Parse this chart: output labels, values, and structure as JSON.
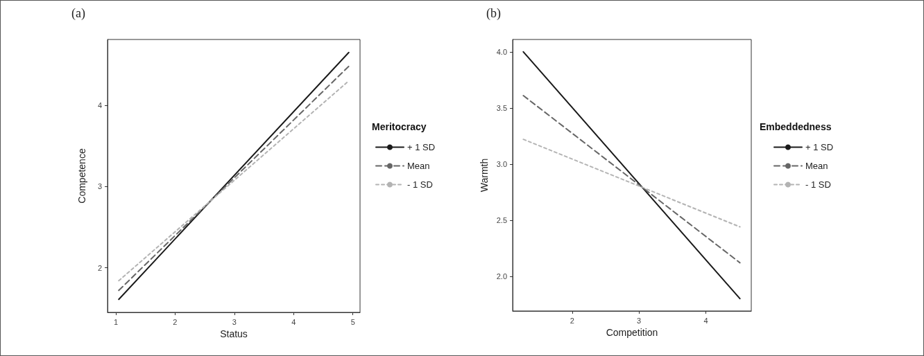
{
  "chart_data": [
    {
      "type": "line",
      "title": "(a)",
      "xlabel": "Status",
      "ylabel": "Competence",
      "legend_title": "Meritocracy",
      "legend": "right",
      "grid": false,
      "marker": "none",
      "xlim": [
        0.86,
        5.12
      ],
      "xticks": [
        1,
        2,
        3,
        4,
        5
      ],
      "ylim": [
        1.45,
        4.81
      ],
      "yticks": [
        2,
        3,
        4
      ],
      "series": [
        {
          "name": "+ 1 SD",
          "color": "#1a1a1a",
          "line_style": "solid",
          "x": [
            1.05,
            4.93
          ],
          "values": [
            1.61,
            4.65
          ]
        },
        {
          "name": "Mean",
          "color": "#666666",
          "line_style": "dashed",
          "x": [
            1.05,
            4.93
          ],
          "values": [
            1.72,
            4.48
          ]
        },
        {
          "name": "- 1 SD",
          "color": "#b3b3b3",
          "line_style": "dotted",
          "x": [
            1.05,
            4.93
          ],
          "values": [
            1.84,
            4.3
          ]
        }
      ]
    },
    {
      "type": "line",
      "title": "(b)",
      "xlabel": "Competition",
      "ylabel": "Warmth",
      "legend_title": "Embeddedness",
      "legend": "right",
      "grid": false,
      "marker": "none",
      "xlim": [
        1.11,
        4.68
      ],
      "xticks": [
        2,
        3,
        4
      ],
      "ylim": [
        1.69,
        4.11
      ],
      "yticks": [
        {
          "value": 2,
          "label": "2.0"
        },
        {
          "value": 2.5,
          "label": "2.5"
        },
        {
          "value": 3,
          "label": "3.0"
        },
        {
          "value": 3.5,
          "label": "3.5"
        },
        {
          "value": 4,
          "label": "4.0"
        }
      ],
      "series": [
        {
          "name": "+ 1 SD",
          "color": "#1a1a1a",
          "line_style": "solid",
          "x": [
            1.27,
            4.51
          ],
          "values": [
            4.0,
            1.8
          ]
        },
        {
          "name": "Mean",
          "color": "#666666",
          "line_style": "dashed",
          "x": [
            1.27,
            4.51
          ],
          "values": [
            3.61,
            2.12
          ]
        },
        {
          "name": "- 1 SD",
          "color": "#b3b3b3",
          "line_style": "dotted",
          "x": [
            1.27,
            4.51
          ],
          "values": [
            3.22,
            2.44
          ]
        }
      ]
    }
  ]
}
